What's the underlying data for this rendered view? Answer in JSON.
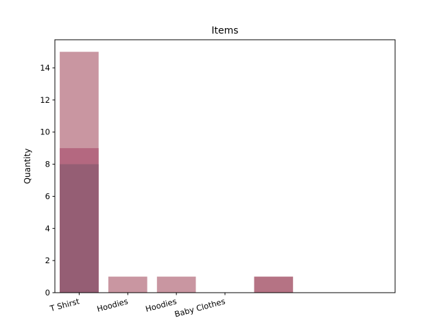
{
  "chart_data": {
    "type": "bar",
    "title": "Items",
    "xlabel": "",
    "ylabel": "Quantity",
    "ylim": [
      0,
      15.75
    ],
    "xlim": [
      -0.5,
      6.5
    ],
    "yticks": [
      0,
      2,
      4,
      6,
      8,
      10,
      12,
      14
    ],
    "xticks": [
      {
        "pos": 0,
        "label": "T Shirst"
      },
      {
        "pos": 1,
        "label": "Hoodies"
      },
      {
        "pos": 2,
        "label": "Hoodies"
      },
      {
        "pos": 3,
        "label": "Baby Clothes"
      }
    ],
    "bars": [
      {
        "x": 0,
        "value": 15,
        "color": "#c08490",
        "opacity": 0.85
      },
      {
        "x": 0,
        "value": 9,
        "color": "#b0607a",
        "opacity": 0.85
      },
      {
        "x": 0,
        "value": 8,
        "color": "#8f5d72",
        "opacity": 0.85
      },
      {
        "x": 1,
        "value": 1,
        "color": "#c08490",
        "opacity": 0.85
      },
      {
        "x": 2,
        "value": 1,
        "color": "#c08490",
        "opacity": 0.85
      },
      {
        "x": 4,
        "value": 1,
        "color": "#a85a6e",
        "opacity": 0.85
      }
    ]
  }
}
